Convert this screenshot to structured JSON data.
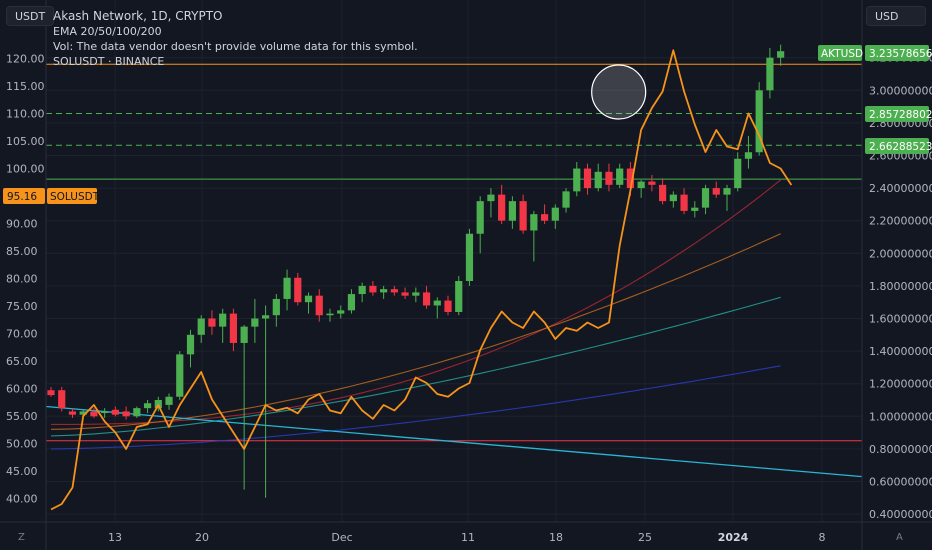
{
  "header": {
    "title": "Akash Network, 1D, CRYPTO",
    "indicator": "EMA 20/50/100/200",
    "vol_note": "Vol: The data vendor doesn't provide volume data for this symbol.",
    "overlay_symbol": "SOLUSDT · BINANCE"
  },
  "left_unit": "USDT",
  "right_unit": "USD",
  "corner_left": "Z",
  "corner_right": "A",
  "colors": {
    "background": "#131722",
    "up": "#4caf50",
    "down": "#f23645",
    "overlay": "#f7931a",
    "ema20": "#b22833",
    "ema50": "#c26a1e",
    "ema100": "#26a69a",
    "ema200": "#2a3ec4",
    "trendline": "#29b6d5",
    "hline_red": "#f23645",
    "hline_orange": "#f7931a",
    "hline_green": "#4caf50"
  },
  "chart_data": {
    "type": "candlestick",
    "title": "Akash Network, 1D, CRYPTO",
    "x_ticks": [
      "13",
      "20",
      "Dec",
      "11",
      "18",
      "25",
      "2024",
      "8"
    ],
    "left_axis": {
      "label": "USDT",
      "ticks": [
        "40.00",
        "45.00",
        "50.00",
        "55.00",
        "60.00",
        "65.00",
        "70.00",
        "75.00",
        "80.00",
        "85.00",
        "90.00",
        "95.00",
        "100.00",
        "105.00",
        "110.00",
        "115.00",
        "120.00"
      ],
      "range": [
        37,
        122
      ]
    },
    "right_axis": {
      "label": "USD",
      "ticks": [
        "0.40000000",
        "0.60000000",
        "0.80000000",
        "1.00000000",
        "1.20000000",
        "1.40000000",
        "1.60000000",
        "1.80000000",
        "2.00000000",
        "2.20000000",
        "2.40000000",
        "2.60000000",
        "2.80000000",
        "3.00000000",
        "3.20000000"
      ],
      "range": [
        0.36,
        3.6
      ]
    },
    "akt_candles": [
      [
        1.16,
        1.18,
        1.12,
        1.13
      ],
      [
        1.16,
        1.18,
        1.03,
        1.05
      ],
      [
        1.03,
        1.05,
        0.99,
        1.01
      ],
      [
        1.01,
        1.04,
        0.99,
        1.03
      ],
      [
        1.03,
        1.05,
        0.99,
        1.0
      ],
      [
        1.02,
        1.05,
        0.99,
        1.03
      ],
      [
        1.04,
        1.06,
        1.0,
        1.01
      ],
      [
        1.03,
        1.06,
        0.98,
        1.0
      ],
      [
        1.0,
        1.06,
        0.99,
        1.05
      ],
      [
        1.05,
        1.1,
        1.02,
        1.08
      ],
      [
        1.05,
        1.12,
        1.03,
        1.1
      ],
      [
        1.07,
        1.14,
        1.04,
        1.12
      ],
      [
        1.12,
        1.4,
        1.1,
        1.38
      ],
      [
        1.38,
        1.53,
        1.3,
        1.5
      ],
      [
        1.5,
        1.62,
        1.45,
        1.6
      ],
      [
        1.6,
        1.65,
        1.5,
        1.55
      ],
      [
        1.55,
        1.66,
        1.45,
        1.63
      ],
      [
        1.63,
        1.66,
        1.4,
        1.45
      ],
      [
        1.45,
        1.56,
        0.55,
        1.55
      ],
      [
        1.55,
        1.72,
        1.45,
        1.6
      ],
      [
        1.6,
        1.68,
        0.5,
        1.62
      ],
      [
        1.62,
        1.75,
        1.55,
        1.72
      ],
      [
        1.72,
        1.9,
        1.65,
        1.85
      ],
      [
        1.85,
        1.88,
        1.68,
        1.7
      ],
      [
        1.7,
        1.76,
        1.63,
        1.74
      ],
      [
        1.74,
        1.78,
        1.58,
        1.62
      ],
      [
        1.62,
        1.66,
        1.58,
        1.63
      ],
      [
        1.63,
        1.68,
        1.6,
        1.65
      ],
      [
        1.65,
        1.78,
        1.63,
        1.75
      ],
      [
        1.75,
        1.82,
        1.7,
        1.8
      ],
      [
        1.8,
        1.83,
        1.74,
        1.76
      ],
      [
        1.76,
        1.8,
        1.72,
        1.78
      ],
      [
        1.78,
        1.8,
        1.74,
        1.76
      ],
      [
        1.76,
        1.79,
        1.72,
        1.74
      ],
      [
        1.74,
        1.79,
        1.7,
        1.76
      ],
      [
        1.76,
        1.8,
        1.66,
        1.68
      ],
      [
        1.68,
        1.73,
        1.6,
        1.71
      ],
      [
        1.71,
        1.74,
        1.62,
        1.64
      ],
      [
        1.64,
        1.86,
        1.62,
        1.83
      ],
      [
        1.83,
        2.15,
        1.8,
        2.12
      ],
      [
        2.12,
        2.35,
        2.0,
        2.32
      ],
      [
        2.32,
        2.4,
        2.22,
        2.36
      ],
      [
        2.36,
        2.42,
        2.18,
        2.2
      ],
      [
        2.2,
        2.35,
        2.15,
        2.32
      ],
      [
        2.32,
        2.36,
        2.12,
        2.14
      ],
      [
        2.14,
        2.26,
        1.95,
        2.24
      ],
      [
        2.24,
        2.3,
        2.18,
        2.2
      ],
      [
        2.2,
        2.3,
        2.15,
        2.28
      ],
      [
        2.28,
        2.4,
        2.25,
        2.38
      ],
      [
        2.38,
        2.56,
        2.35,
        2.52
      ],
      [
        2.52,
        2.55,
        2.36,
        2.4
      ],
      [
        2.4,
        2.55,
        2.38,
        2.5
      ],
      [
        2.5,
        2.55,
        2.38,
        2.42
      ],
      [
        2.42,
        2.55,
        2.4,
        2.52
      ],
      [
        2.52,
        2.56,
        2.35,
        2.4
      ],
      [
        2.4,
        2.45,
        2.34,
        2.44
      ],
      [
        2.44,
        2.48,
        2.38,
        2.42
      ],
      [
        2.42,
        2.46,
        2.3,
        2.32
      ],
      [
        2.32,
        2.38,
        2.28,
        2.36
      ],
      [
        2.36,
        2.4,
        2.24,
        2.26
      ],
      [
        2.26,
        2.32,
        2.22,
        2.28
      ],
      [
        2.28,
        2.42,
        2.24,
        2.4
      ],
      [
        2.4,
        2.44,
        2.34,
        2.36
      ],
      [
        2.36,
        2.42,
        2.26,
        2.4
      ],
      [
        2.4,
        2.62,
        2.38,
        2.58
      ],
      [
        2.58,
        2.72,
        2.52,
        2.62
      ],
      [
        2.62,
        3.05,
        2.6,
        3.0
      ],
      [
        3.0,
        3.26,
        2.95,
        3.2
      ],
      [
        3.2,
        3.28,
        3.15,
        3.24
      ]
    ],
    "solusdt_close": [
      38.0,
      39.0,
      42.0,
      55.0,
      57.0,
      54.0,
      52.0,
      49.0,
      53.0,
      53.5,
      57.0,
      53.0,
      57.0,
      60.0,
      63.0,
      58.0,
      55.0,
      52.0,
      49.0,
      53.0,
      57.0,
      56.0,
      56.5,
      55.5,
      58.0,
      59.0,
      56.0,
      55.5,
      58.5,
      56.0,
      54.5,
      57.0,
      56.0,
      58.0,
      62.0,
      61.0,
      59.0,
      58.5,
      60.0,
      61.0,
      67.0,
      71.0,
      74.0,
      72.0,
      71.0,
      74.0,
      72.0,
      69.0,
      71.0,
      70.5,
      72.0,
      71.0,
      72.0,
      86.0,
      96.0,
      107.0,
      111.0,
      114.0,
      121.5,
      114.0,
      108.0,
      103.0,
      107.0,
      104.0,
      103.5,
      110.0,
      106.0,
      101.0,
      100.0,
      97.0
    ],
    "ema_series": [
      {
        "name": "EMA 20",
        "start": 0.95,
        "end": 2.45
      },
      {
        "name": "EMA 50",
        "start": 0.92,
        "end": 2.12
      },
      {
        "name": "EMA 100",
        "start": 0.88,
        "end": 1.73
      },
      {
        "name": "EMA 200",
        "start": 0.8,
        "end": 1.31
      }
    ],
    "horizontal_levels": [
      {
        "axis": "right",
        "value": 3.16
      },
      {
        "axis": "right",
        "value": 2.85728802,
        "dashed": true
      },
      {
        "axis": "right",
        "value": 2.66288523,
        "dashed": true
      },
      {
        "axis": "right",
        "value": 2.455
      },
      {
        "axis": "left",
        "value": 50.5
      }
    ],
    "trendline": {
      "from": [
        0,
        1.06
      ],
      "to": [
        69,
        0.63
      ]
    },
    "highlight_circle_bar": 53,
    "labels": [
      {
        "text": "AKTUSD",
        "value": "3.23578656",
        "axis": "right"
      },
      {
        "value": "2.85728802",
        "axis": "right"
      },
      {
        "value": "2.66288523",
        "axis": "right"
      },
      {
        "text": "SOLUSDT",
        "value": "95.16",
        "axis": "left"
      }
    ]
  }
}
